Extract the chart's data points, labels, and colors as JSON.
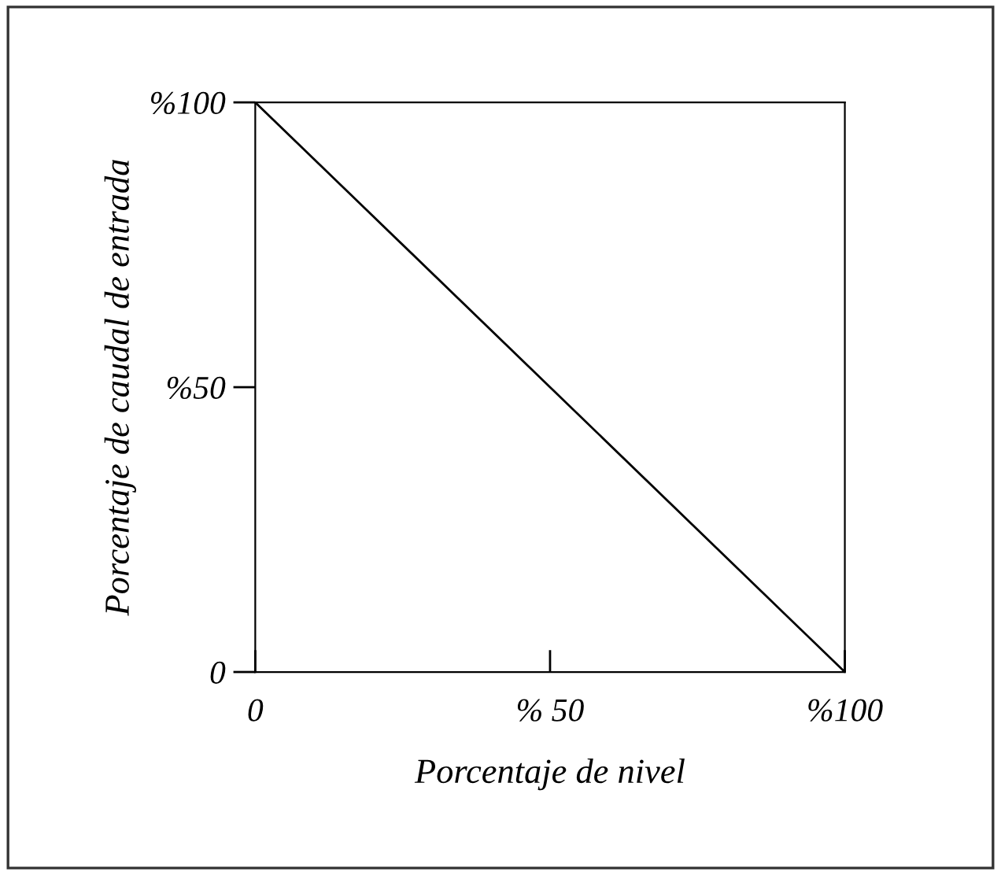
{
  "chart_data": {
    "type": "line",
    "xlabel": "Porcentaje de nivel",
    "ylabel": "Porcentaje de caudal de entrada",
    "x": [
      0,
      100
    ],
    "series": [
      {
        "color": "#000000",
        "values": [
          100,
          0
        ]
      }
    ],
    "xlim": [
      0,
      100
    ],
    "ylim": [
      0,
      100
    ],
    "xticks": [
      0,
      {
        "value": 50,
        "label": "% 50"
      },
      {
        "value": 100,
        "label": "%100"
      }
    ],
    "yticks": [
      0,
      {
        "value": 50,
        "label": "%50"
      },
      {
        "value": 100,
        "label": "%100"
      }
    ],
    "grid": false,
    "legend": false,
    "marker": "none",
    "line_style": "solid"
  }
}
